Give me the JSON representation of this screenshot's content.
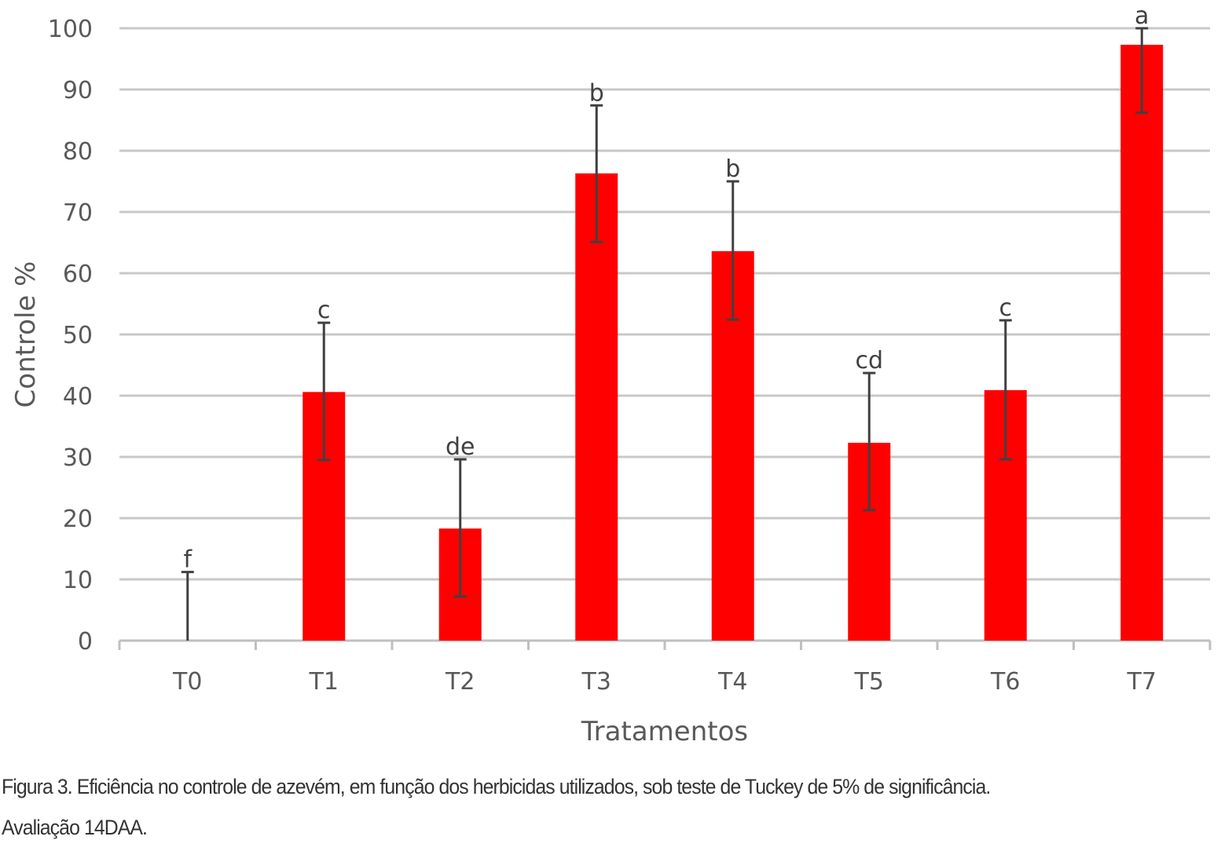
{
  "chart_data": {
    "type": "bar",
    "title": "",
    "xlabel": "Tratamentos",
    "ylabel": "Controle %",
    "ylim": [
      0,
      100
    ],
    "yticks": [
      0,
      10,
      20,
      30,
      40,
      50,
      60,
      70,
      80,
      90,
      100
    ],
    "grid": true,
    "categories": [
      "T0",
      "T1",
      "T2",
      "T3",
      "T4",
      "T5",
      "T6",
      "T7"
    ],
    "values": [
      0,
      40.6,
      18.3,
      76.3,
      63.6,
      32.3,
      40.9,
      97.3
    ],
    "error_upper": [
      11.2,
      51.9,
      29.6,
      87.4,
      75.0,
      43.7,
      52.3,
      108.5
    ],
    "error_lower": [
      0,
      29.5,
      7.2,
      65.1,
      52.4,
      21.3,
      29.6,
      86.2
    ],
    "significance_letters": [
      "f",
      "c",
      "de",
      "b",
      "b",
      "cd",
      "c",
      "a"
    ],
    "bar_color": "#ff0000",
    "grid_color": "#c8c8c8"
  },
  "caption": {
    "line1": "Figura 3. Eficiência no controle de azevém, em função dos herbicidas utilizados, sob teste de Tuckey de 5% de significância.",
    "line2": "Avaliação 14DAA."
  }
}
